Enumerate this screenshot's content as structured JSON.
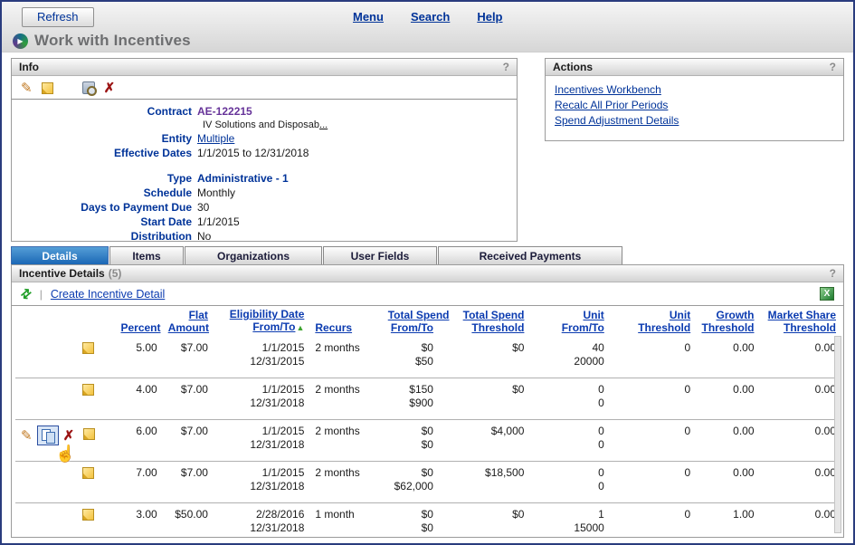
{
  "colors": {
    "accent_navy": "#003399",
    "contract_purple": "#663399",
    "active_tab_blue": "#1a67b5",
    "sort_green": "#3da32e",
    "delete_red": "#9b1313"
  },
  "topbar": {
    "refresh_label": "Refresh",
    "menu": "Menu",
    "search": "Search",
    "help": "Help"
  },
  "page": {
    "title": "Work with Incentives"
  },
  "icons": {
    "logo": "▶",
    "pencil": "✎",
    "delete_x": "✗",
    "refresh_arrows": "⇄",
    "pipe": "|",
    "excel_x": "X",
    "sort_asc": "▲",
    "hand": "☝"
  },
  "info": {
    "title": "Info",
    "help": "?",
    "contract_label": "Contract",
    "contract_value": "AE-122215",
    "contract_desc": "IV Solutions and Disposab",
    "contract_desc_more": "...",
    "entity_label": "Entity",
    "entity_value": "Multiple",
    "effective_label": "Effective Dates",
    "effective_value": "1/1/2015 to 12/31/2018",
    "type_label": "Type",
    "type_value": "Administrative - 1",
    "schedule_label": "Schedule",
    "schedule_value": "Monthly",
    "days_label": "Days to Payment Due",
    "days_value": "30",
    "start_label": "Start Date",
    "start_value": "1/1/2015",
    "distribution_label": "Distribution",
    "distribution_value": "No"
  },
  "actions": {
    "title": "Actions",
    "help": "?",
    "links": [
      "Incentives Workbench",
      "Recalc All Prior Periods",
      "Spend Adjustment Details"
    ]
  },
  "tabs": [
    {
      "label": "Details",
      "active": true
    },
    {
      "label": "Items",
      "active": false
    },
    {
      "label": "Organizations",
      "active": false
    },
    {
      "label": "User Fields",
      "active": false
    },
    {
      "label": "Received Payments",
      "active": false
    }
  ],
  "details": {
    "title": "Incentive Details",
    "count": "(5)",
    "help": "?",
    "create_link": "Create Incentive Detail",
    "columns": {
      "percent": [
        "",
        "Percent"
      ],
      "flat": [
        "Flat",
        "Amount"
      ],
      "elig": [
        "Eligibility Date",
        "From/To"
      ],
      "recurs": [
        "",
        "Recurs"
      ],
      "spend_ft": [
        "Total Spend",
        "From/To"
      ],
      "spend_th": [
        "Total Spend",
        "Threshold"
      ],
      "unit_ft": [
        "Unit",
        "From/To"
      ],
      "unit_th": [
        "Unit",
        "Threshold"
      ],
      "growth_th": [
        "Growth",
        "Threshold"
      ],
      "market_th": [
        "Market Share",
        "Threshold"
      ]
    },
    "rows": [
      {
        "percent": "5.00",
        "flat": "$7.00",
        "elig_from": "1/1/2015",
        "elig_to": "12/31/2015",
        "recurs": "2 months",
        "spend_from": "$0",
        "spend_to": "$50",
        "spend_threshold": "$0",
        "unit_from": "40",
        "unit_to": "20000",
        "unit_threshold": "0",
        "growth": "0.00",
        "market": "0.00"
      },
      {
        "percent": "4.00",
        "flat": "$7.00",
        "elig_from": "1/1/2015",
        "elig_to": "12/31/2018",
        "recurs": "2 months",
        "spend_from": "$150",
        "spend_to": "$900",
        "spend_threshold": "$0",
        "unit_from": "0",
        "unit_to": "0",
        "unit_threshold": "0",
        "growth": "0.00",
        "market": "0.00"
      },
      {
        "percent": "6.00",
        "flat": "$7.00",
        "elig_from": "1/1/2015",
        "elig_to": "12/31/2018",
        "recurs": "2 months",
        "spend_from": "$0",
        "spend_to": "$0",
        "spend_threshold": "$4,000",
        "unit_from": "0",
        "unit_to": "0",
        "unit_threshold": "0",
        "growth": "0.00",
        "market": "0.00"
      },
      {
        "percent": "7.00",
        "flat": "$7.00",
        "elig_from": "1/1/2015",
        "elig_to": "12/31/2018",
        "recurs": "2 months",
        "spend_from": "$0",
        "spend_to": "$62,000",
        "spend_threshold": "$18,500",
        "unit_from": "0",
        "unit_to": "0",
        "unit_threshold": "0",
        "growth": "0.00",
        "market": "0.00"
      },
      {
        "percent": "3.00",
        "flat": "$50.00",
        "elig_from": "2/28/2016",
        "elig_to": "12/31/2018",
        "recurs": "1 month",
        "spend_from": "$0",
        "spend_to": "$0",
        "spend_threshold": "$0",
        "unit_from": "1",
        "unit_to": "15000",
        "unit_threshold": "0",
        "growth": "1.00",
        "market": "0.00"
      }
    ]
  }
}
